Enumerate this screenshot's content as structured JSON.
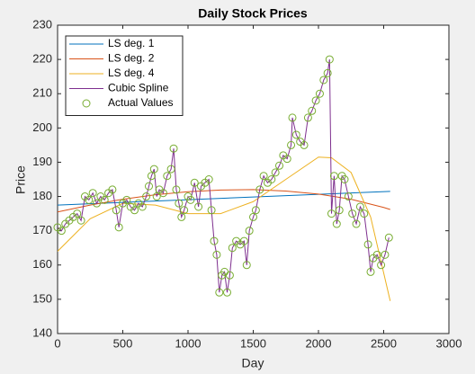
{
  "chart_data": {
    "type": "line",
    "title": "Daily Stock Prices",
    "x_label": "Day",
    "y_label": "Price",
    "xlim": [
      0,
      3000
    ],
    "xticks": [
      0,
      500,
      1000,
      1500,
      2000,
      2500,
      3000
    ],
    "ylim": [
      140,
      230
    ],
    "yticks": [
      140,
      150,
      160,
      170,
      180,
      190,
      200,
      210,
      220,
      230
    ],
    "grid": false,
    "legend": "upper left",
    "series": [
      {
        "name": "LS deg. 1",
        "type": "line",
        "color": "#0072BD",
        "x": [
          0,
          2550
        ],
        "values": [
          177.5,
          181.5
        ]
      },
      {
        "name": "LS deg. 2",
        "type": "line",
        "color": "#D95319",
        "x": [
          0,
          250,
          500,
          750,
          1000,
          1250,
          1500,
          1750,
          2000,
          2250,
          2500,
          2550
        ],
        "values": [
          175.5,
          177.5,
          179.2,
          180.5,
          181.4,
          181.9,
          182.0,
          181.6,
          180.7,
          179.2,
          176.8,
          176.2
        ]
      },
      {
        "name": "LS deg. 4",
        "type": "line",
        "color": "#EDB120",
        "x": [
          0,
          250,
          500,
          750,
          1000,
          1250,
          1500,
          1750,
          2000,
          2100,
          2250,
          2400,
          2550
        ],
        "values": [
          164,
          173.5,
          178,
          177.5,
          175,
          175,
          178.5,
          185,
          191.5,
          191.3,
          187,
          174,
          149.5
        ]
      },
      {
        "name": "Cubic Spline",
        "type": "line",
        "color": "#7E2F8E",
        "x": [
          0,
          30,
          60,
          90,
          120,
          150,
          180,
          210,
          240,
          270,
          300,
          330,
          360,
          390,
          420,
          450,
          470,
          500,
          530,
          560,
          590,
          620,
          650,
          680,
          700,
          720,
          740,
          760,
          780,
          810,
          840,
          870,
          890,
          910,
          930,
          950,
          970,
          1000,
          1020,
          1050,
          1080,
          1100,
          1130,
          1160,
          1180,
          1200,
          1220,
          1240,
          1260,
          1280,
          1300,
          1320,
          1340,
          1370,
          1400,
          1430,
          1450,
          1470,
          1500,
          1520,
          1550,
          1580,
          1610,
          1640,
          1670,
          1700,
          1730,
          1760,
          1790,
          1800,
          1830,
          1860,
          1890,
          1920,
          1950,
          1980,
          2010,
          2040,
          2070,
          2085,
          2100,
          2120,
          2140,
          2160,
          2180,
          2200,
          2230,
          2260,
          2290,
          2320,
          2350,
          2380,
          2400,
          2420,
          2450,
          2480,
          2510,
          2540
        ],
        "values": [
          171,
          170,
          172,
          173,
          174,
          175,
          173,
          180,
          179,
          181,
          178,
          180,
          179,
          181,
          182,
          176,
          171,
          178,
          179,
          177,
          176,
          178,
          177,
          180,
          183,
          186,
          188,
          180,
          182,
          181,
          186,
          188,
          194,
          182,
          178,
          174,
          176,
          180,
          179,
          184,
          177,
          183,
          184,
          185,
          176,
          167,
          163,
          152,
          157,
          158,
          152,
          157,
          165,
          167,
          166,
          167,
          160,
          170,
          174,
          176,
          182,
          186,
          184,
          185,
          187,
          189,
          192,
          191,
          195,
          203,
          198,
          196,
          195,
          203,
          205,
          208,
          210,
          214,
          216,
          220,
          175,
          186,
          172,
          176,
          186,
          185,
          180,
          175,
          172,
          177,
          175,
          166,
          158,
          162,
          163,
          160,
          163,
          168
        ]
      },
      {
        "name": "Actual Values",
        "type": "scatter",
        "color": "#77AC30",
        "x": [
          0,
          30,
          60,
          90,
          120,
          150,
          180,
          210,
          240,
          270,
          300,
          330,
          360,
          390,
          420,
          450,
          470,
          500,
          530,
          560,
          590,
          620,
          650,
          680,
          700,
          720,
          740,
          760,
          780,
          810,
          840,
          870,
          890,
          910,
          930,
          950,
          970,
          1000,
          1020,
          1050,
          1080,
          1100,
          1130,
          1160,
          1180,
          1200,
          1220,
          1240,
          1260,
          1280,
          1300,
          1320,
          1340,
          1370,
          1400,
          1430,
          1450,
          1470,
          1500,
          1520,
          1550,
          1580,
          1610,
          1640,
          1670,
          1700,
          1730,
          1760,
          1790,
          1800,
          1830,
          1860,
          1890,
          1920,
          1950,
          1980,
          2010,
          2040,
          2070,
          2085,
          2100,
          2120,
          2140,
          2160,
          2180,
          2200,
          2230,
          2260,
          2290,
          2320,
          2350,
          2380,
          2400,
          2420,
          2450,
          2480,
          2510,
          2540
        ],
        "values": [
          171,
          170,
          172,
          173,
          174,
          175,
          173,
          180,
          179,
          181,
          178,
          180,
          179,
          181,
          182,
          176,
          171,
          178,
          179,
          177,
          176,
          178,
          177,
          180,
          183,
          186,
          188,
          180,
          182,
          181,
          186,
          188,
          194,
          182,
          178,
          174,
          176,
          180,
          179,
          184,
          177,
          183,
          184,
          185,
          176,
          167,
          163,
          152,
          157,
          158,
          152,
          157,
          165,
          167,
          166,
          167,
          160,
          170,
          174,
          176,
          182,
          186,
          184,
          185,
          187,
          189,
          192,
          191,
          195,
          203,
          198,
          196,
          195,
          203,
          205,
          208,
          210,
          214,
          216,
          220,
          175,
          186,
          172,
          176,
          186,
          185,
          180,
          175,
          172,
          177,
          175,
          166,
          158,
          162,
          163,
          160,
          163,
          168
        ]
      }
    ]
  }
}
